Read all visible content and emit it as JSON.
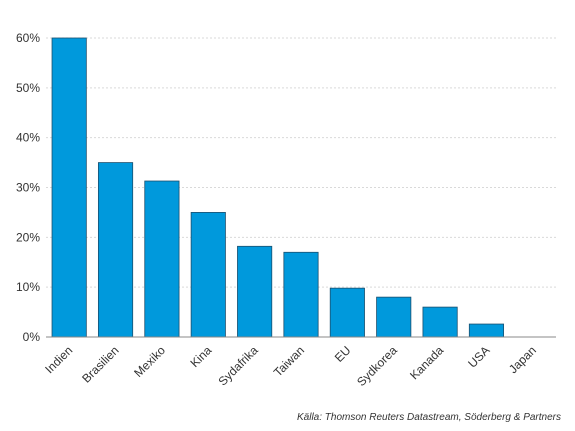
{
  "chart_data": {
    "type": "bar",
    "categories": [
      "Indien",
      "Brasilien",
      "Mexiko",
      "Kina",
      "Sydafrika",
      "Taiwan",
      "EU",
      "Sydkorea",
      "Kanada",
      "USA",
      "Japan"
    ],
    "values": [
      60,
      35,
      31.3,
      25,
      18.2,
      17,
      9.8,
      8,
      6,
      2.6,
      0
    ],
    "yticks": [
      "0%",
      "10%",
      "20%",
      "30%",
      "40%",
      "50%",
      "60%"
    ],
    "ylim": [
      0,
      60
    ],
    "bar_color": "#0099dc",
    "grid": true,
    "source": "Källa: Thomson Reuters Datastream, Söderberg & Partners"
  }
}
